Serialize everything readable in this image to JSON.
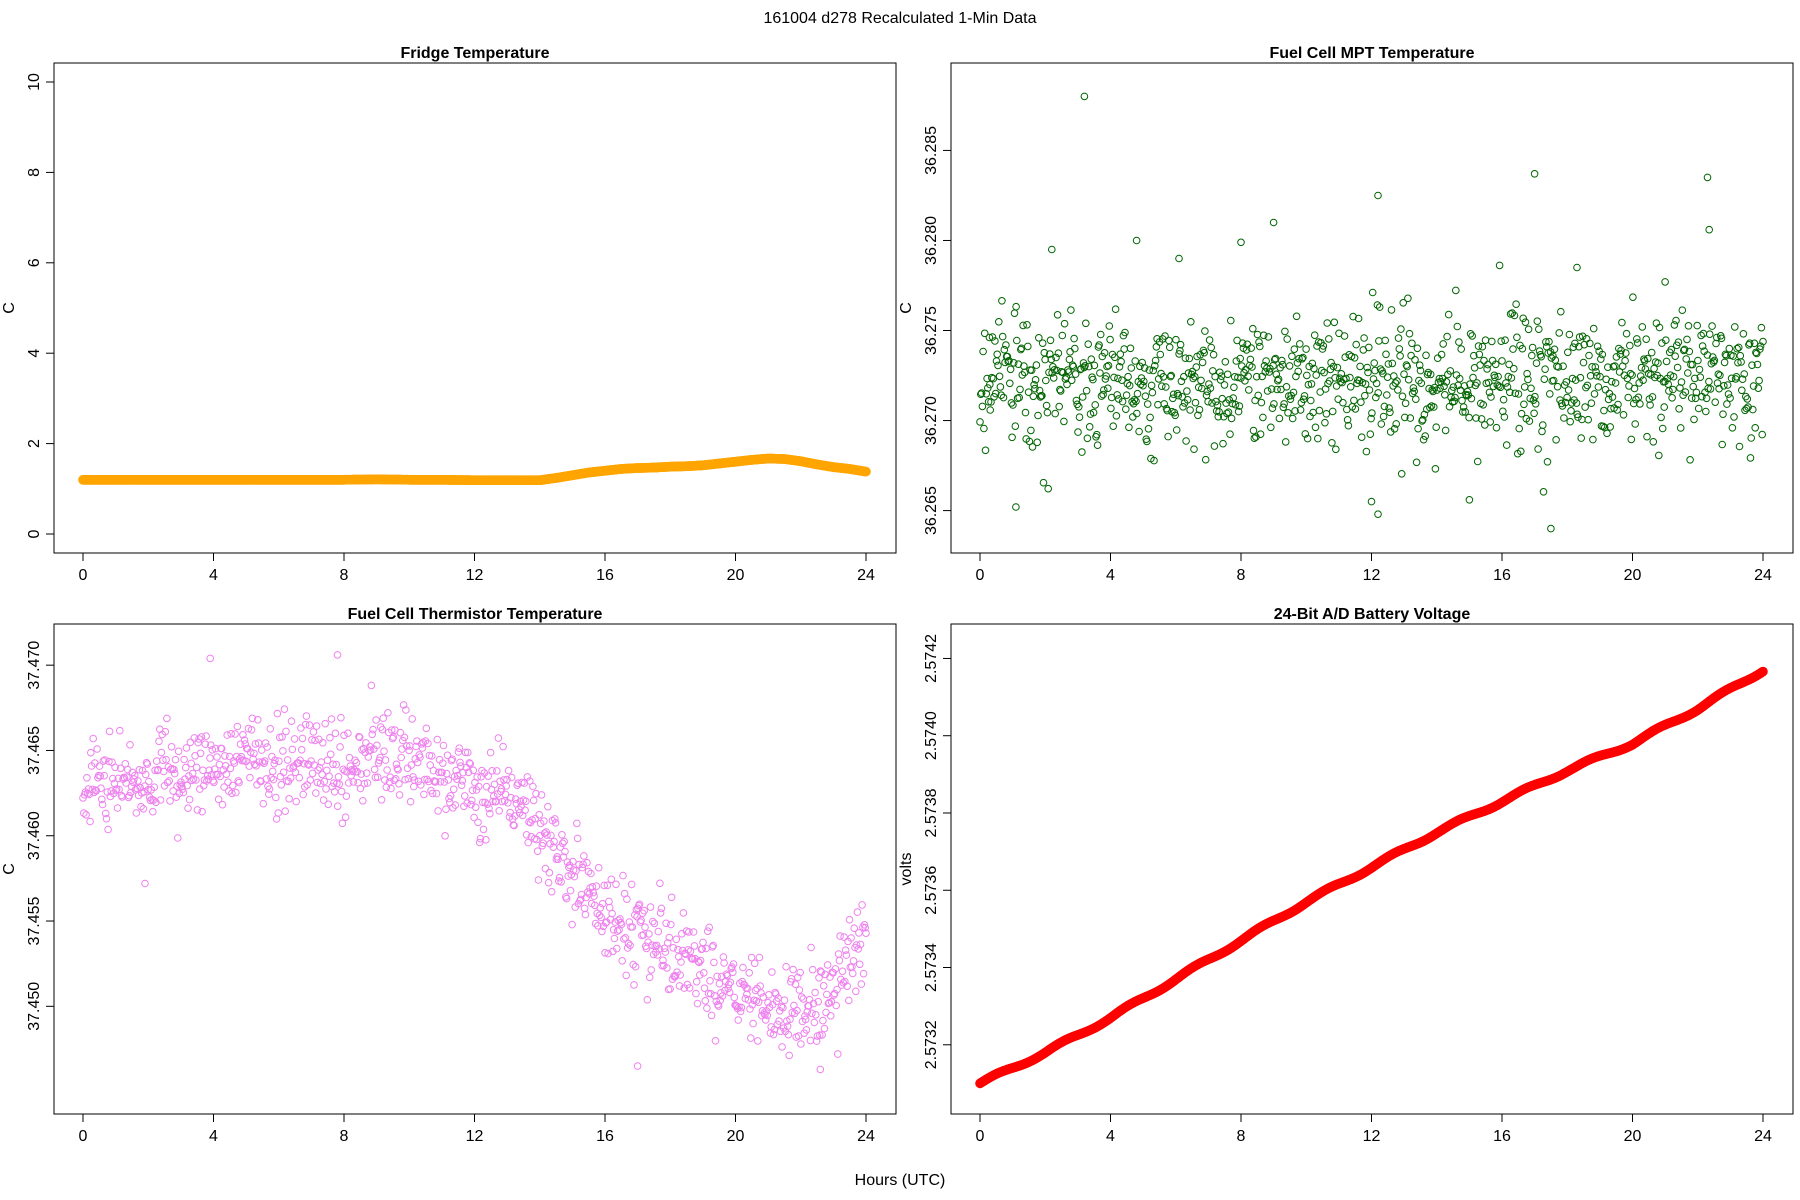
{
  "figure": {
    "title": "161004   d278   Recalculated 1-Min Data",
    "xlabel": "Hours (UTC)"
  },
  "chart_data": [
    {
      "type": "scatter",
      "title": "Fridge Temperature",
      "ylabel": "C",
      "xlim": [
        0,
        24
      ],
      "ylim": [
        0,
        10
      ],
      "xticks": [
        "0",
        "4",
        "8",
        "12",
        "16",
        "20",
        "24"
      ],
      "yticks": [
        "0",
        "2",
        "4",
        "6",
        "8",
        "10"
      ],
      "color": "#FFA500",
      "marker": "filled-dense",
      "series": [
        {
          "x": [
            0,
            1,
            2,
            3,
            4,
            5,
            6,
            7,
            8,
            9,
            10,
            11,
            12,
            13,
            14,
            14.5,
            15,
            15.5,
            16,
            16.5,
            17,
            17.5,
            18,
            18.5,
            19,
            19.5,
            20,
            20.5,
            21,
            21.5,
            22,
            22.5,
            23,
            23.5,
            24
          ],
          "y": [
            1.2,
            1.2,
            1.2,
            1.2,
            1.2,
            1.2,
            1.2,
            1.2,
            1.2,
            1.21,
            1.2,
            1.2,
            1.19,
            1.19,
            1.19,
            1.24,
            1.3,
            1.36,
            1.4,
            1.44,
            1.46,
            1.47,
            1.49,
            1.5,
            1.52,
            1.56,
            1.6,
            1.64,
            1.67,
            1.66,
            1.61,
            1.54,
            1.48,
            1.44,
            1.38
          ]
        }
      ]
    },
    {
      "type": "scatter",
      "title": "Fuel Cell MPT Temperature",
      "ylabel": "C",
      "xlim": [
        0,
        24
      ],
      "ylim": [
        36.2637,
        36.2888
      ],
      "xticks": [
        "0",
        "4",
        "8",
        "12",
        "16",
        "20",
        "24"
      ],
      "yticks": [
        "36.265",
        "36.270",
        "36.275",
        "36.280",
        "36.285"
      ],
      "color": "#006400",
      "marker": "open-circle",
      "series": [
        {
          "x": [
            3.2,
            12.2,
            17.0,
            22.3,
            22.35,
            9.0,
            4.8,
            12.0,
            12.2,
            17.5,
            0.3,
            1.1,
            15.0,
            2.2,
            6.1,
            18.3,
            8.0,
            21.0
          ],
          "y": [
            36.288,
            36.2825,
            36.2837,
            36.2835,
            36.2806,
            36.281,
            36.28,
            36.2655,
            36.2648,
            36.264,
            36.272,
            36.2652,
            36.2656,
            36.2795,
            36.279,
            36.2785,
            36.2799,
            36.2777
          ]
        }
      ],
      "bulk": {
        "count": 1000,
        "y_center": 36.2723,
        "y_spread": 0.0032
      }
    },
    {
      "type": "scatter",
      "title": "Fuel Cell Thermistor Temperature",
      "ylabel": "C",
      "xlim": [
        0,
        24
      ],
      "ylim": [
        37.4448,
        37.4713
      ],
      "xticks": [
        "0",
        "4",
        "8",
        "12",
        "16",
        "20",
        "24"
      ],
      "yticks": [
        "37.450",
        "37.455",
        "37.460",
        "37.465",
        "37.470"
      ],
      "color": "#EE82EE",
      "marker": "open-circle",
      "series": [
        {
          "x": [
            0,
            2,
            4,
            6,
            8,
            9,
            10,
            11,
            12,
            13,
            14,
            15,
            16,
            17,
            18,
            19,
            20,
            20.5,
            21,
            22,
            23,
            24
          ],
          "y": [
            37.463,
            37.463,
            37.464,
            37.4645,
            37.4638,
            37.465,
            37.4645,
            37.4635,
            37.463,
            37.4625,
            37.4605,
            37.4575,
            37.4555,
            37.4545,
            37.4535,
            37.452,
            37.451,
            37.4505,
            37.45,
            37.4495,
            37.451,
            37.454
          ]
        },
        {
          "x": [
            3.9,
            7.8,
            1.9,
            17.0,
            22.6
          ],
          "y": [
            37.4704,
            37.4706,
            37.4572,
            37.4465,
            37.4463
          ]
        }
      ],
      "bulk": {
        "count": 1000,
        "y_spread": 0.0023
      }
    },
    {
      "type": "line",
      "title": "24-Bit A/D Battery Voltage",
      "ylabel": "volts",
      "xlim": [
        0,
        24
      ],
      "ylim": [
        2.57307,
        2.57424
      ],
      "xticks": [
        "0",
        "4",
        "8",
        "12",
        "16",
        "20",
        "24"
      ],
      "yticks": [
        "2.5732",
        "2.5734",
        "2.5736",
        "2.5738",
        "2.5740",
        "2.5742"
      ],
      "color": "#FF0000",
      "marker": "filled-dense",
      "series": [
        {
          "x": [
            0,
            2,
            4,
            6,
            8,
            10,
            12,
            14,
            16,
            18,
            20,
            22,
            24
          ],
          "y": [
            2.5731,
            2.57318,
            2.57327,
            2.57337,
            2.57347,
            2.57357,
            2.57366,
            2.57375,
            2.57383,
            2.57391,
            2.57398,
            2.57407,
            2.57417
          ]
        }
      ]
    }
  ]
}
